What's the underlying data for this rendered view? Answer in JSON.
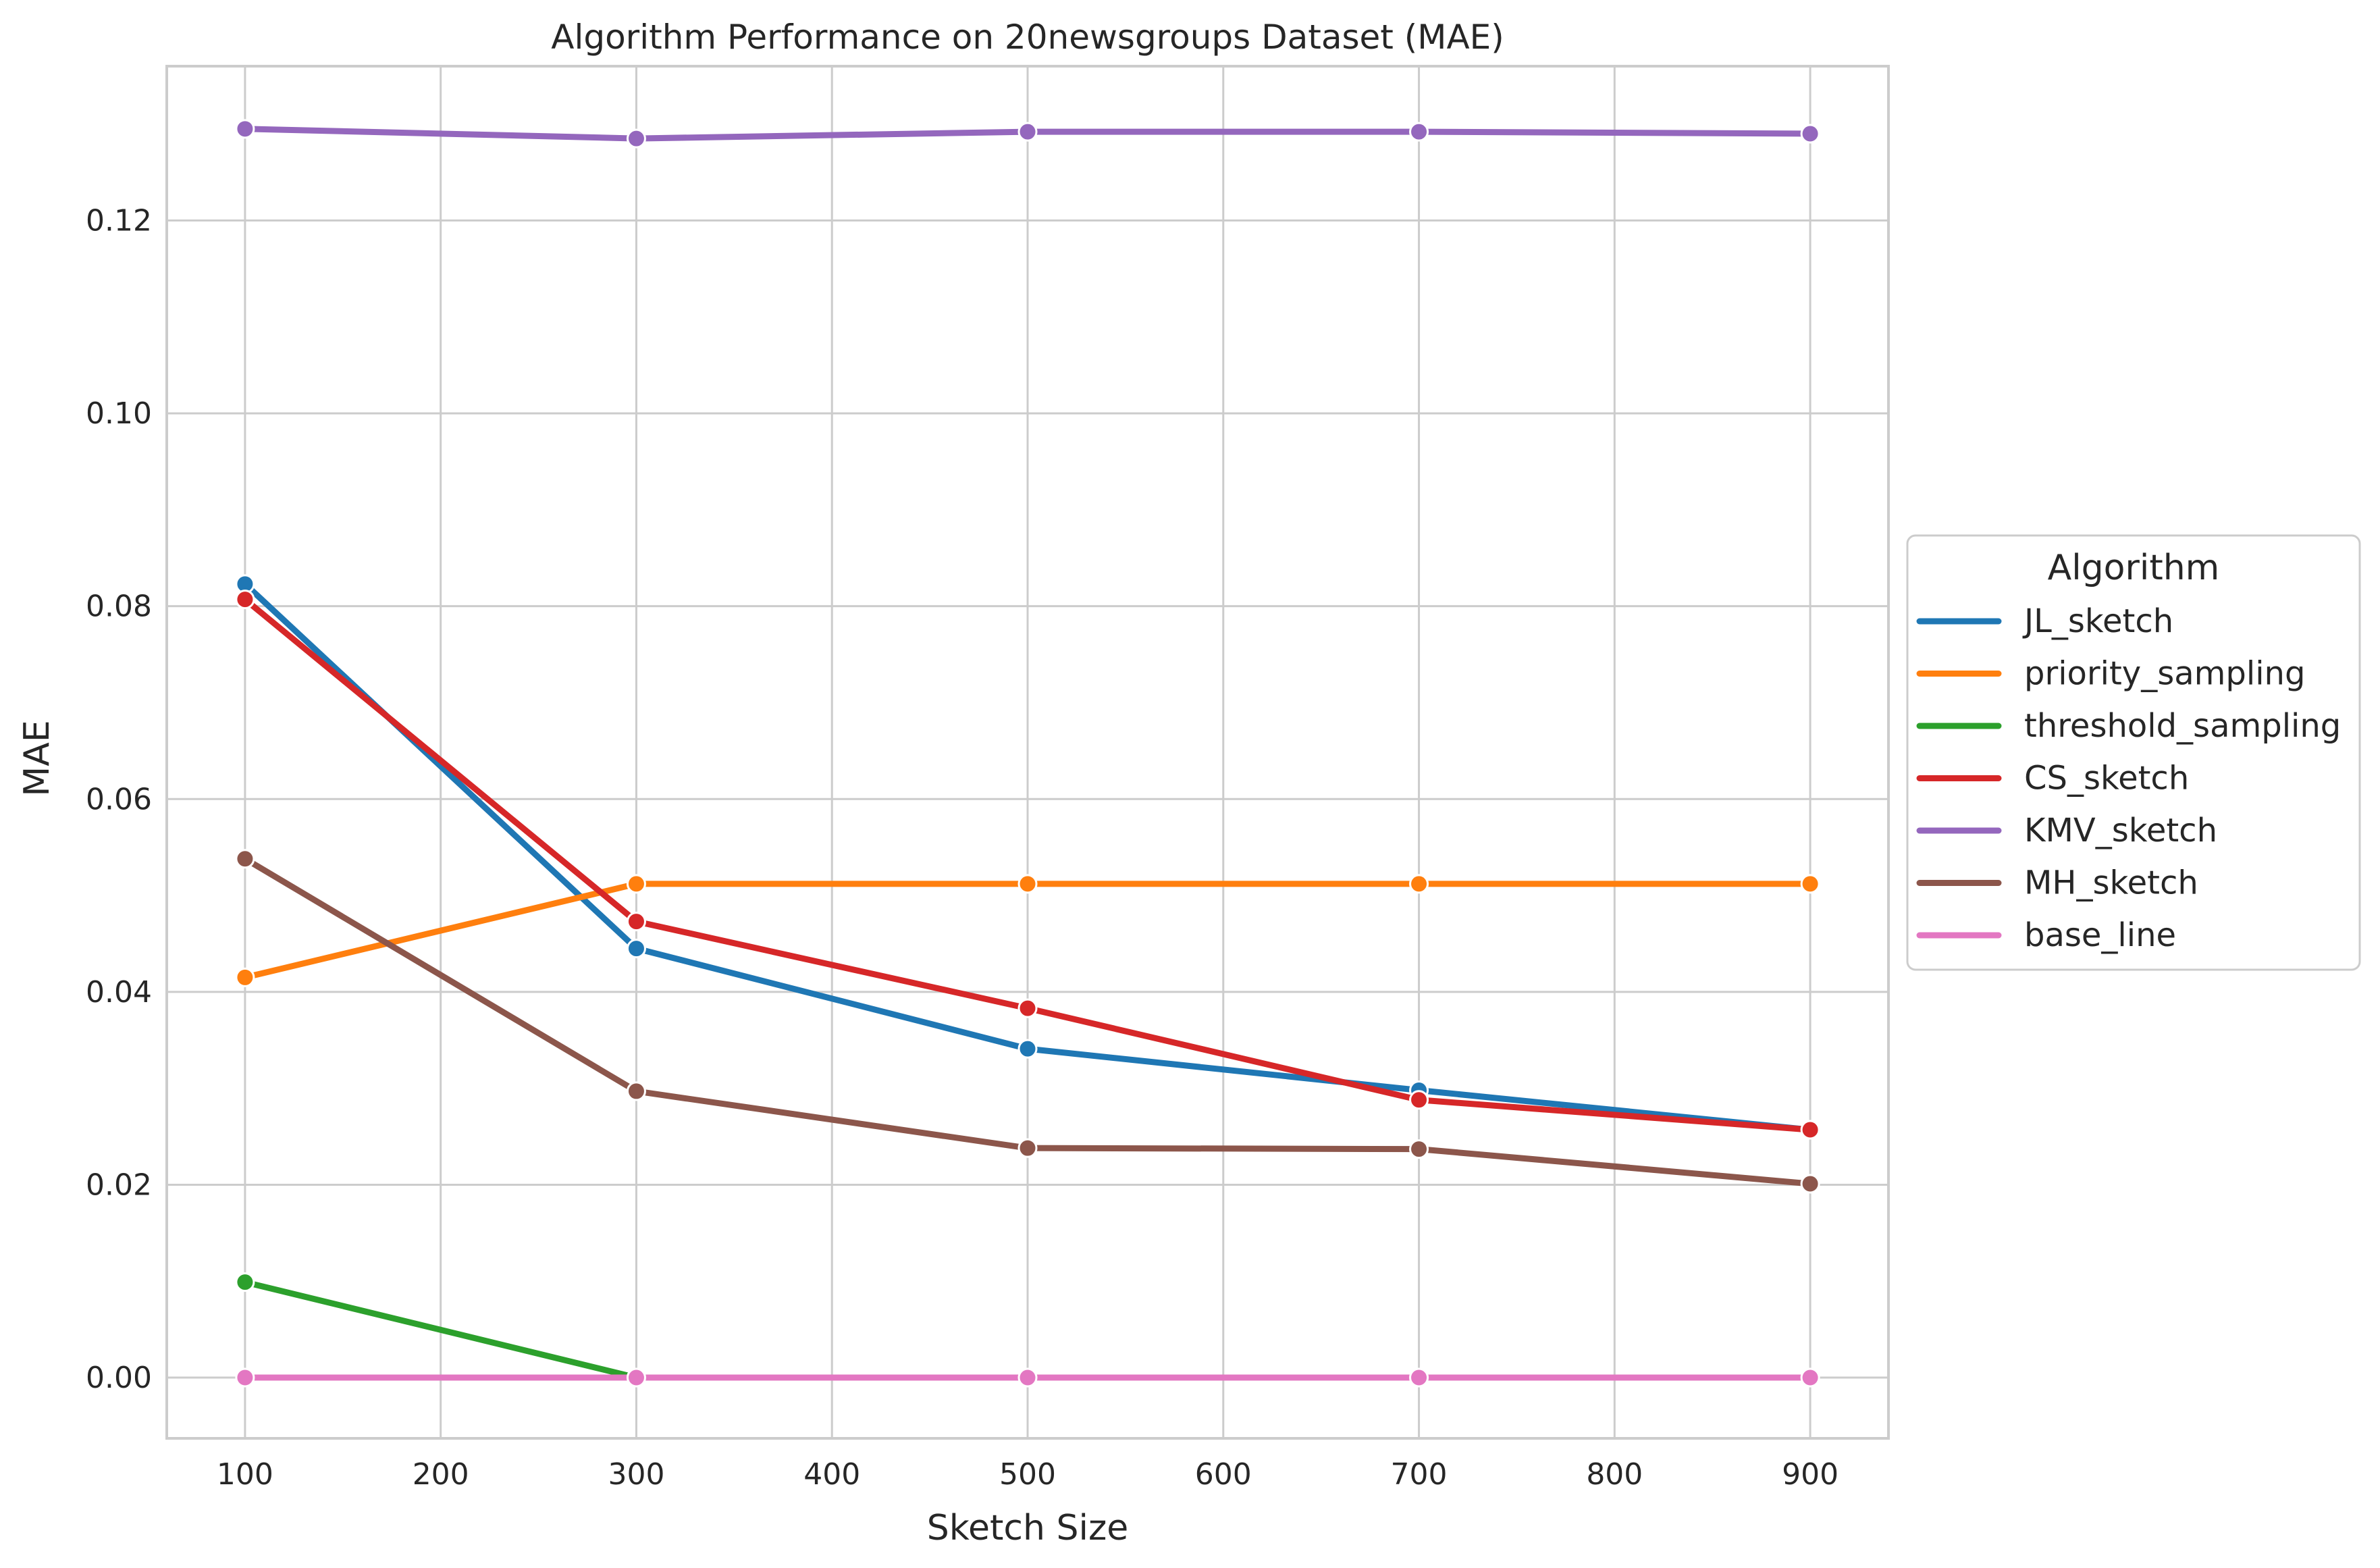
{
  "chart_data": {
    "type": "line",
    "title": "Algorithm Performance on 20newsgroups Dataset (MAE)",
    "xlabel": "Sketch Size",
    "ylabel": "MAE",
    "x": [
      100,
      300,
      500,
      700,
      900
    ],
    "xlim": [
      60,
      940
    ],
    "ylim": [
      -0.0063,
      0.136
    ],
    "xticks": [
      100,
      200,
      300,
      400,
      500,
      600,
      700,
      800,
      900
    ],
    "yticks": [
      0.0,
      0.02,
      0.04,
      0.06,
      0.08,
      0.1,
      0.12
    ],
    "xtick_labels": [
      "100",
      "200",
      "300",
      "400",
      "500",
      "600",
      "700",
      "800",
      "900"
    ],
    "ytick_labels": [
      "0.00",
      "0.02",
      "0.04",
      "0.06",
      "0.08",
      "0.10",
      "0.12"
    ],
    "grid": true,
    "legend_title": "Algorithm",
    "legend_position": "center-right outside",
    "series": [
      {
        "name": "JL_sketch",
        "color": "#1f77b4",
        "values": [
          0.0823,
          0.0445,
          0.0341,
          0.0298,
          0.0257
        ]
      },
      {
        "name": "priority_sampling",
        "color": "#ff7f0e",
        "values": [
          0.0415,
          0.0512,
          0.0512,
          0.0512,
          0.0512
        ]
      },
      {
        "name": "threshold_sampling",
        "color": "#2ca02c",
        "values": [
          0.0099,
          0.0,
          0.0,
          0.0,
          0.0
        ]
      },
      {
        "name": "CS_sketch",
        "color": "#d62728",
        "values": [
          0.0807,
          0.0473,
          0.0383,
          0.0288,
          0.0257
        ]
      },
      {
        "name": "KMV_sketch",
        "color": "#9467bd",
        "values": [
          0.1295,
          0.1285,
          0.1292,
          0.1292,
          0.129
        ]
      },
      {
        "name": "MH_sketch",
        "color": "#8c564b",
        "values": [
          0.0538,
          0.0297,
          0.0238,
          0.0237,
          0.0201
        ]
      },
      {
        "name": "base_line",
        "color": "#e377c2",
        "values": [
          0.0,
          0.0,
          0.0,
          0.0,
          0.0
        ]
      }
    ]
  }
}
